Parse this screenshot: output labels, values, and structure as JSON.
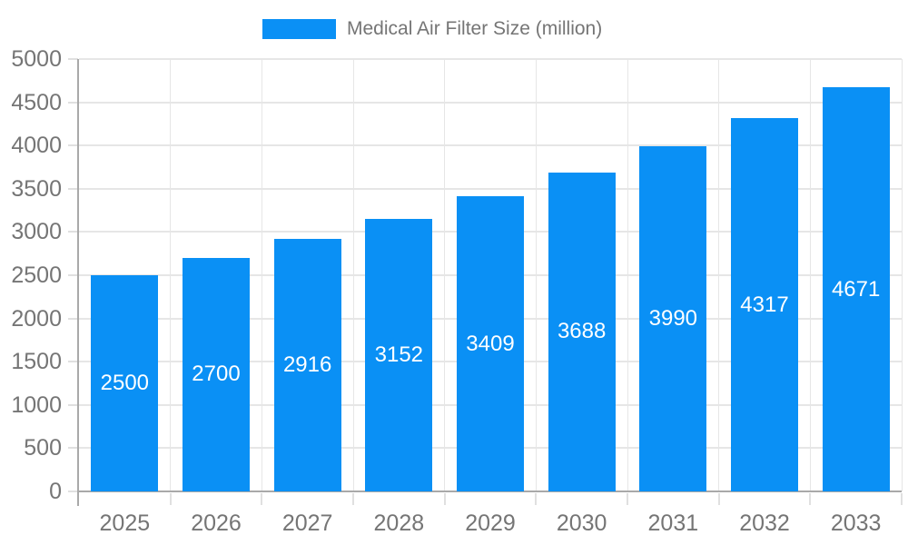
{
  "chart_data": {
    "type": "bar",
    "title": "Medical Air Filter Size (million)",
    "categories": [
      "2025",
      "2026",
      "2027",
      "2028",
      "2029",
      "2030",
      "2031",
      "2032",
      "2033"
    ],
    "series": [
      {
        "name": "Medical Air Filter Size (million)",
        "color": "#0a90f5",
        "values": [
          2500,
          2700,
          2916,
          3152,
          3409,
          3688,
          3990,
          4317,
          4671
        ]
      }
    ],
    "value_labels": true,
    "value_label_position": "inside-center",
    "xlabel": "",
    "ylabel": "",
    "ylim": [
      0,
      5000
    ],
    "yticks": [
      0,
      500,
      1000,
      1500,
      2000,
      2500,
      3000,
      3500,
      4000,
      4500,
      5000
    ],
    "grid": true,
    "legend_position": "top"
  },
  "colors": {
    "bar": "#0a90f5",
    "grid": "#e6e6e6",
    "tick": "#e0e0e0",
    "axis": "#a9a9a9",
    "label_text": "#757575",
    "value_text": "#ffffff",
    "background": "#ffffff"
  }
}
